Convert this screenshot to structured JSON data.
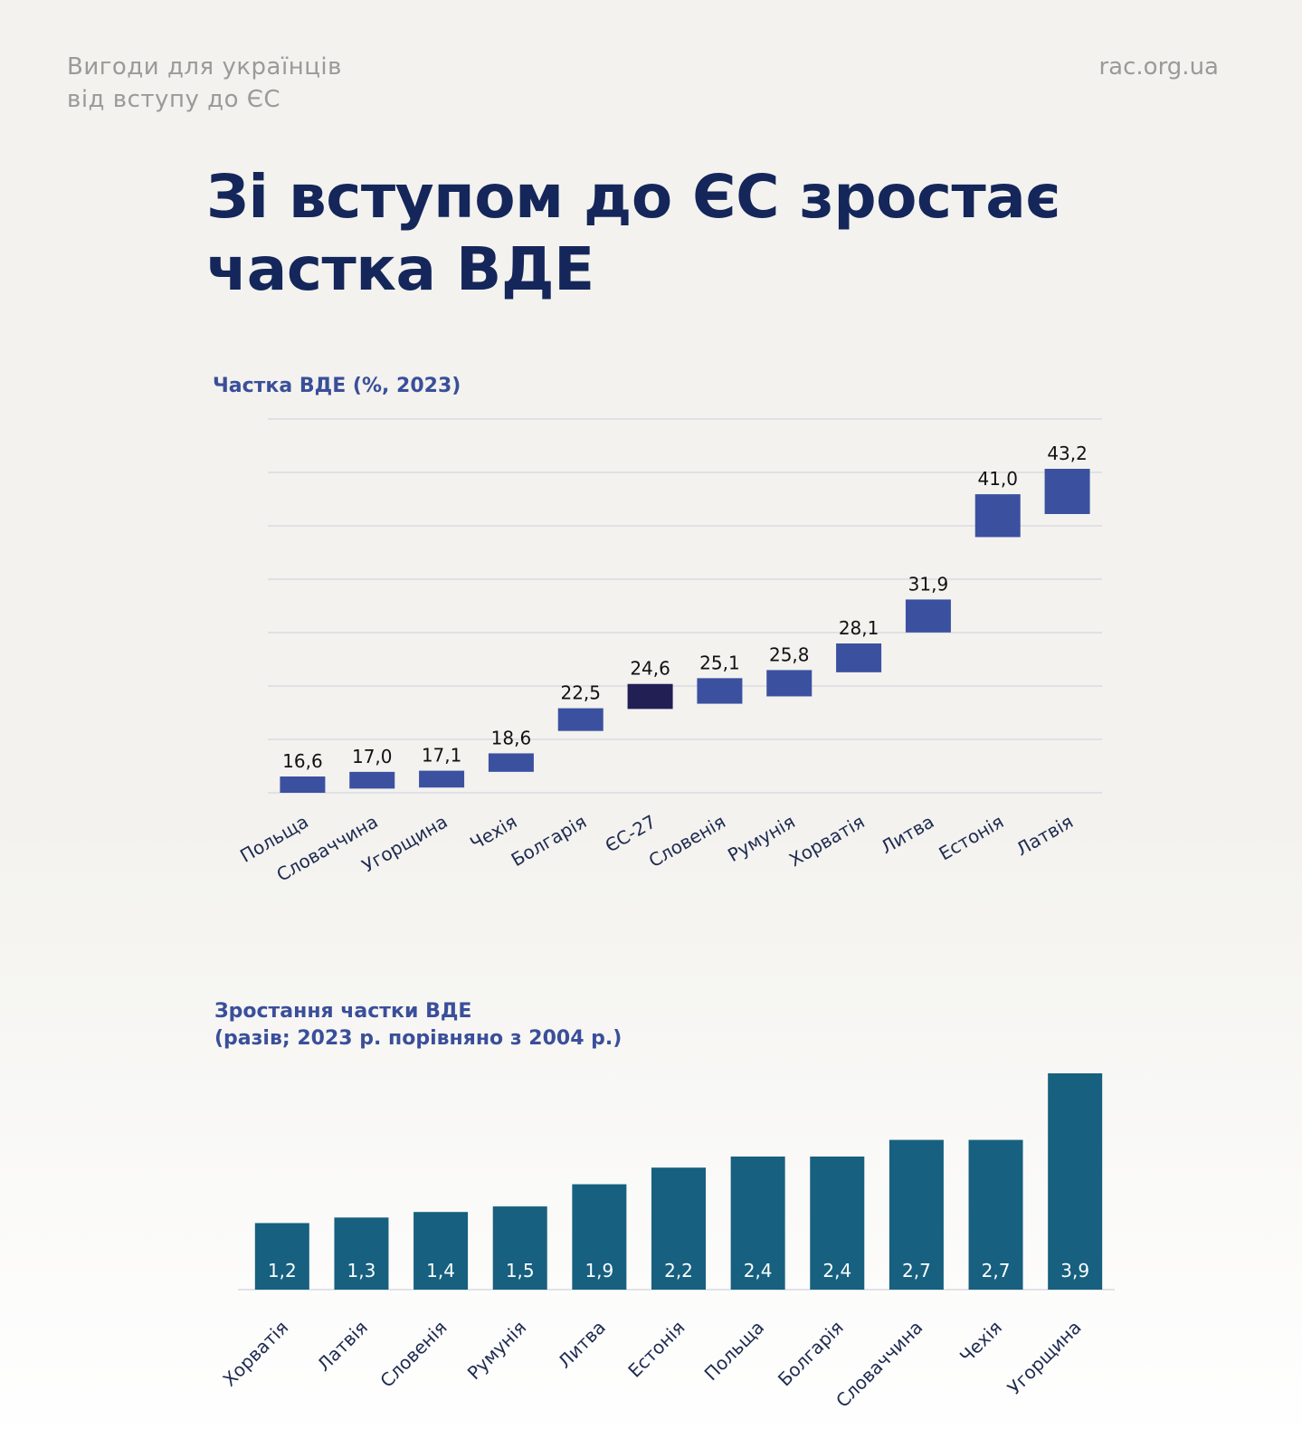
{
  "header": {
    "subtitle_line1": "Вигоди для українців",
    "subtitle_line2": "від вступу до ЄС",
    "site": "rac.org.ua"
  },
  "title": {
    "line1": "Зі вступом до ЄС зростає",
    "line2": "частка ВДЕ"
  },
  "chart_data": [
    {
      "type": "bar",
      "title": "Частка ВДЕ (%, 2023)",
      "categories": [
        "Польща",
        "Словаччина",
        "Угорщина",
        "Чехія",
        "Болгарія",
        "ЄС-27",
        "Словенія",
        "Румунія",
        "Хорватія",
        "Литва",
        "Естонія",
        "Латвія"
      ],
      "values": [
        16.6,
        17.0,
        17.1,
        18.6,
        22.5,
        24.6,
        25.1,
        25.8,
        28.1,
        31.9,
        41.0,
        43.2
      ],
      "labels": [
        "16,6",
        "17,0",
        "17,1",
        "18,6",
        "22,5",
        "24,6",
        "25,1",
        "25,8",
        "28,1",
        "31,9",
        "41,0",
        "43,2"
      ],
      "highlight": "ЄС-27",
      "colors": {
        "bar": "#3b51a0",
        "highlight": "#221f55",
        "grid": "#d9d9e3"
      },
      "grid": true
    },
    {
      "type": "bar",
      "title": "Зростання частки ВДЕ",
      "subtitle": "(разів; 2023 р. порівняно з 2004 р.)",
      "categories": [
        "Хорватія",
        "Латвія",
        "Словенія",
        "Румунія",
        "Литва",
        "Естонія",
        "Польща",
        "Болгарія",
        "Словаччина",
        "Чехія",
        "Угорщина"
      ],
      "values": [
        1.2,
        1.3,
        1.4,
        1.5,
        1.9,
        2.2,
        2.4,
        2.4,
        2.7,
        2.7,
        3.9
      ],
      "labels": [
        "1,2",
        "1,3",
        "1,4",
        "1,5",
        "1,9",
        "2,2",
        "2,4",
        "2,4",
        "2,7",
        "2,7",
        "3,9"
      ],
      "colors": {
        "bar": "#17607f"
      },
      "grid": false
    }
  ]
}
